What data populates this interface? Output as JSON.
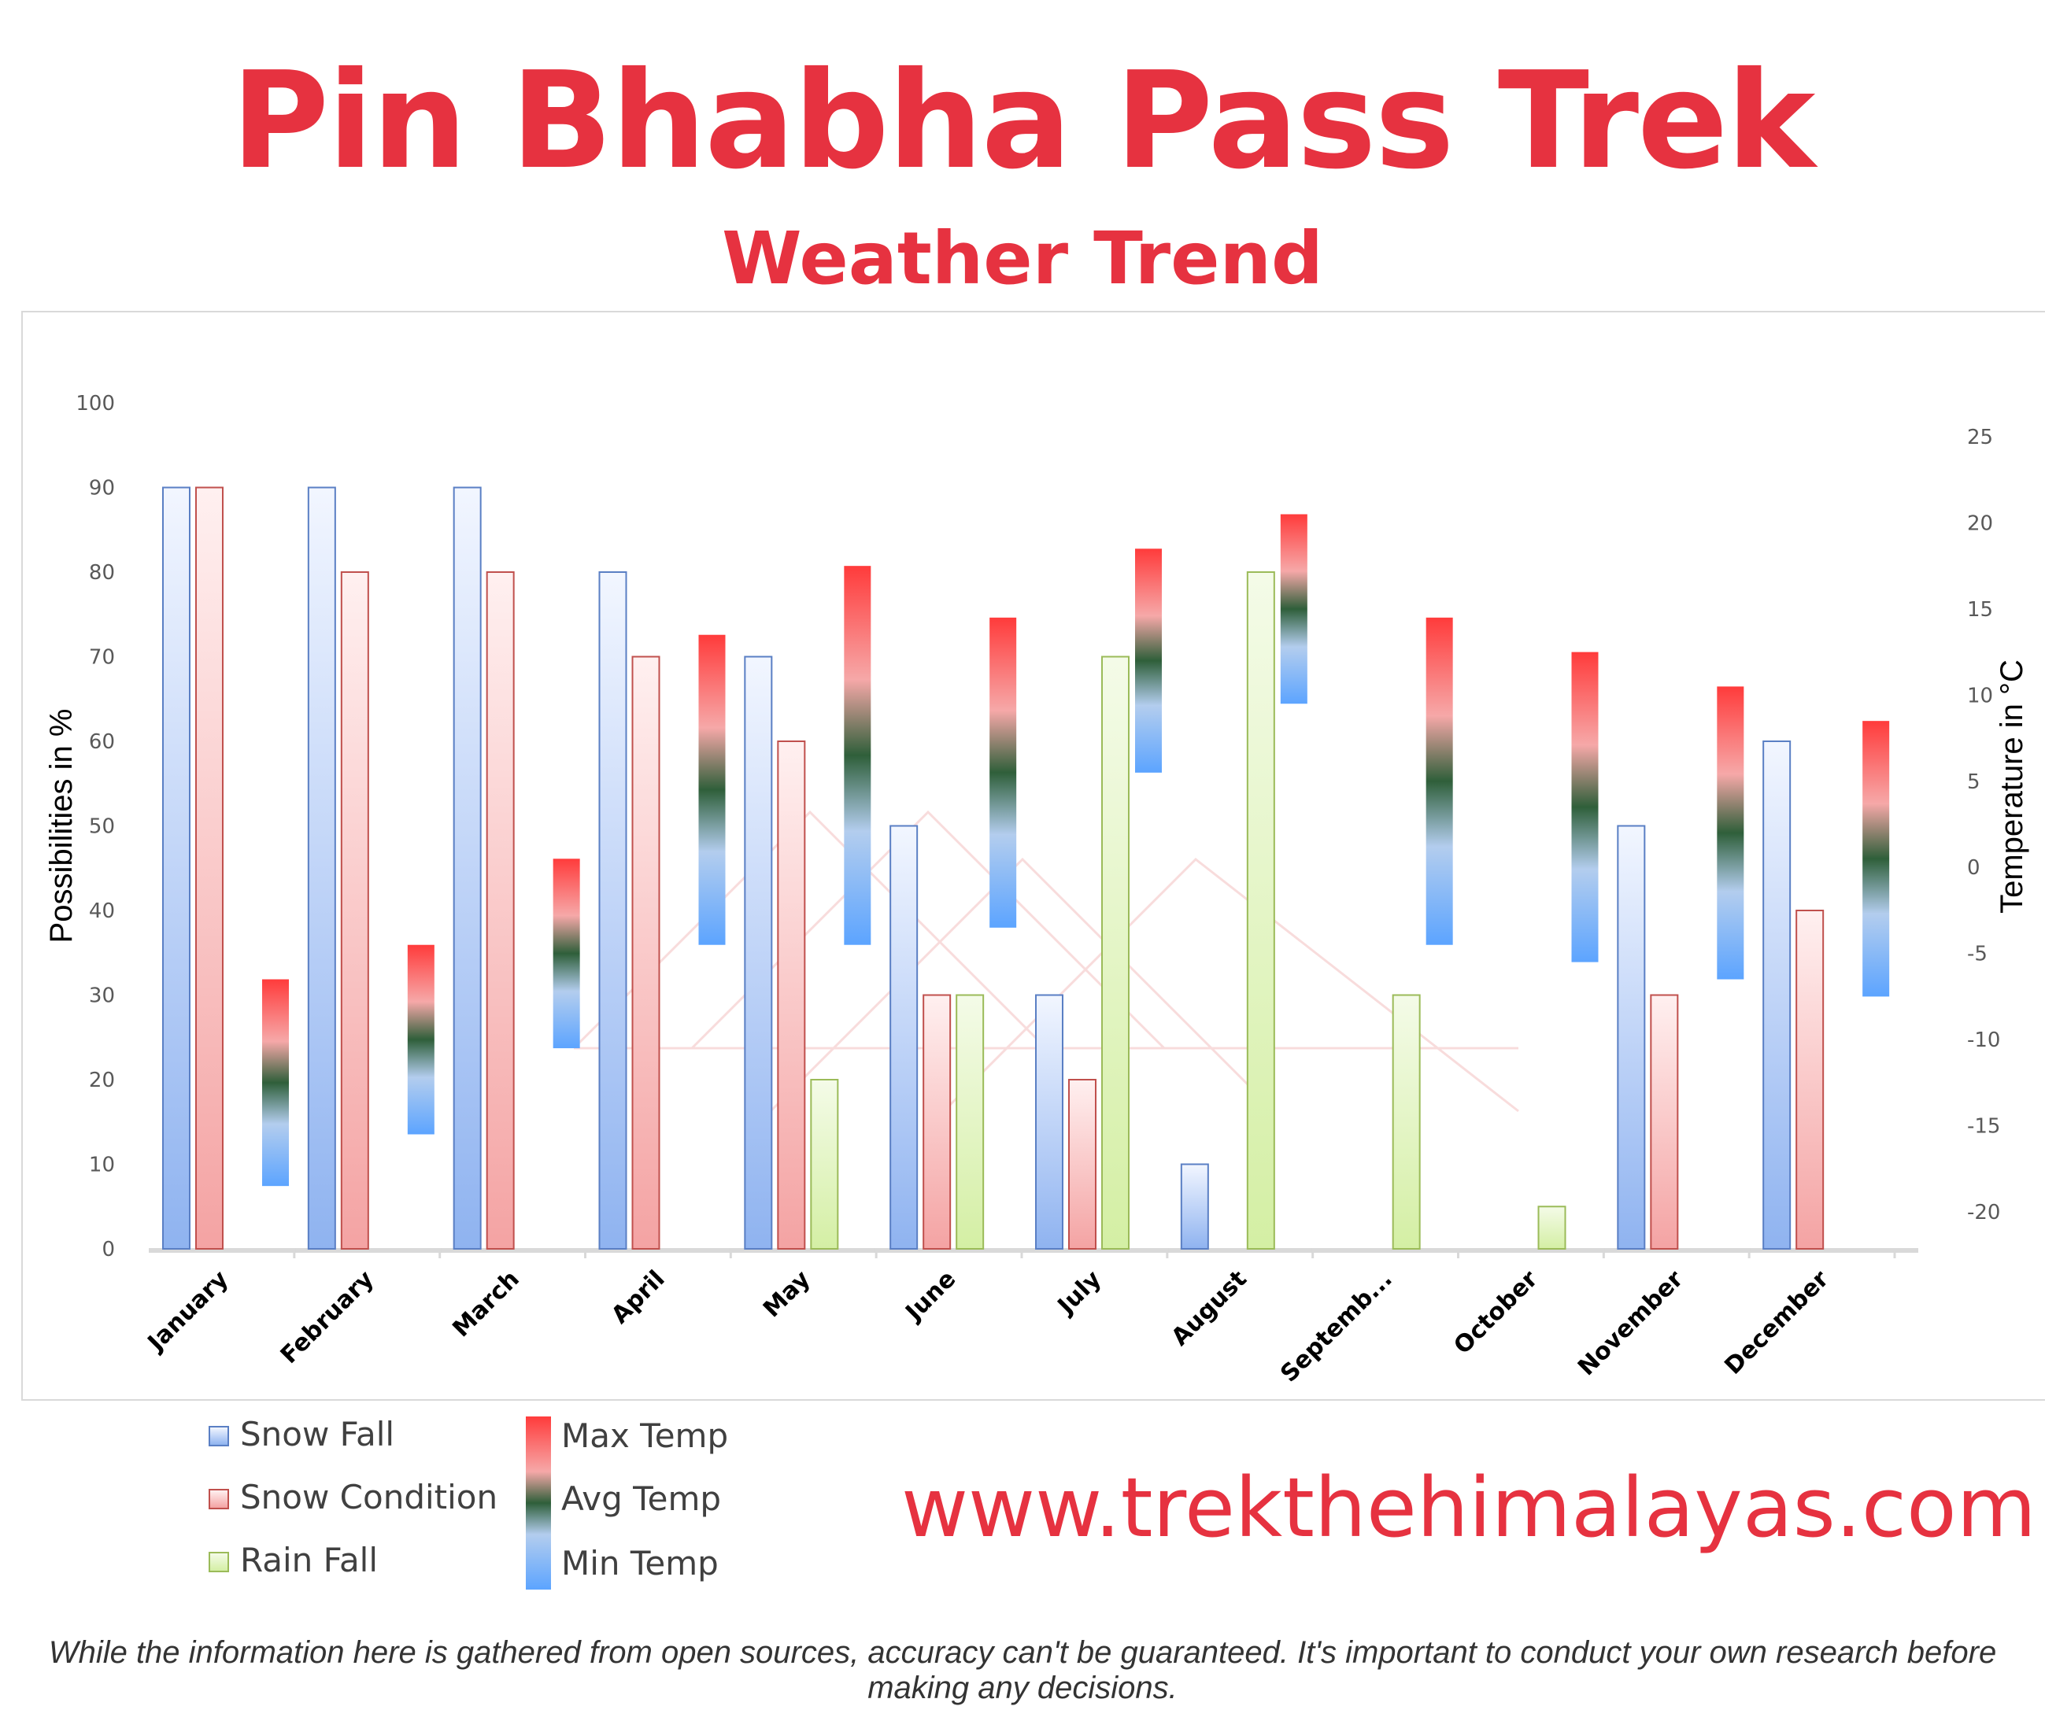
{
  "header": {
    "title": "Pin Bhabha Pass Trek",
    "subtitle": "Weather Trend"
  },
  "footer": {
    "website": "www.trekthehimalayas.com",
    "disclaimer": "While the information here is gathered from open sources, accuracy can't be guaranteed. It's important to conduct your own research before making any decisions."
  },
  "legend": {
    "snow_fall": "Snow Fall",
    "snow_condition": "Snow Condition",
    "rain_fall": "Rain Fall",
    "max_temp": "Max Temp",
    "avg_temp": "Avg Temp",
    "min_temp": "Min Temp"
  },
  "chart_data": {
    "type": "bar",
    "title": "",
    "ylabel": "Possibilities in %",
    "y2label": "Temperature in °C",
    "ylim": [
      0,
      100
    ],
    "yticks": [
      0,
      10,
      20,
      30,
      40,
      50,
      60,
      70,
      80,
      90,
      100
    ],
    "y2lim": [
      -22,
      27
    ],
    "y2ticks": [
      -20,
      -15,
      -10,
      -5,
      0,
      5,
      10,
      15,
      20,
      25
    ],
    "categories": [
      "January",
      "February",
      "March",
      "April",
      "May",
      "June",
      "July",
      "August",
      "Septemb...",
      "October",
      "November",
      "December"
    ],
    "series": [
      {
        "name": "Snow Fall",
        "axis": "left",
        "color": "#5a7fc4",
        "values": [
          90,
          90,
          90,
          80,
          70,
          50,
          30,
          10,
          0,
          0,
          50,
          60
        ]
      },
      {
        "name": "Snow Condition",
        "axis": "left",
        "color": "#c0504d",
        "values": [
          90,
          80,
          80,
          70,
          60,
          30,
          20,
          0,
          0,
          0,
          30,
          40
        ]
      },
      {
        "name": "Rain Fall",
        "axis": "left",
        "color": "#9bbb59",
        "values": [
          0,
          0,
          0,
          0,
          20,
          30,
          70,
          80,
          30,
          5,
          0,
          0
        ]
      }
    ],
    "temperature_ranges": {
      "axis": "right",
      "min": [
        -18.5,
        -15.5,
        -10.5,
        -4.5,
        -4.5,
        -3.5,
        5.5,
        9.5,
        -4.5,
        -5.5,
        -6.5,
        -7.5
      ],
      "max": [
        -6.5,
        -4.5,
        0.5,
        13.5,
        17.5,
        14.5,
        18.5,
        20.5,
        14.5,
        12.5,
        10.5,
        8.5
      ],
      "avg": [
        -12.5,
        -10,
        -5,
        4.5,
        6.5,
        5.5,
        12.5,
        15,
        5,
        3.5,
        1.5,
        0.5
      ],
      "colors": {
        "max": "#ff3b3b",
        "avg": "#2f5f3a",
        "min": "#5ca4ff"
      }
    },
    "grid": false,
    "legend_position": "bottom-left"
  }
}
